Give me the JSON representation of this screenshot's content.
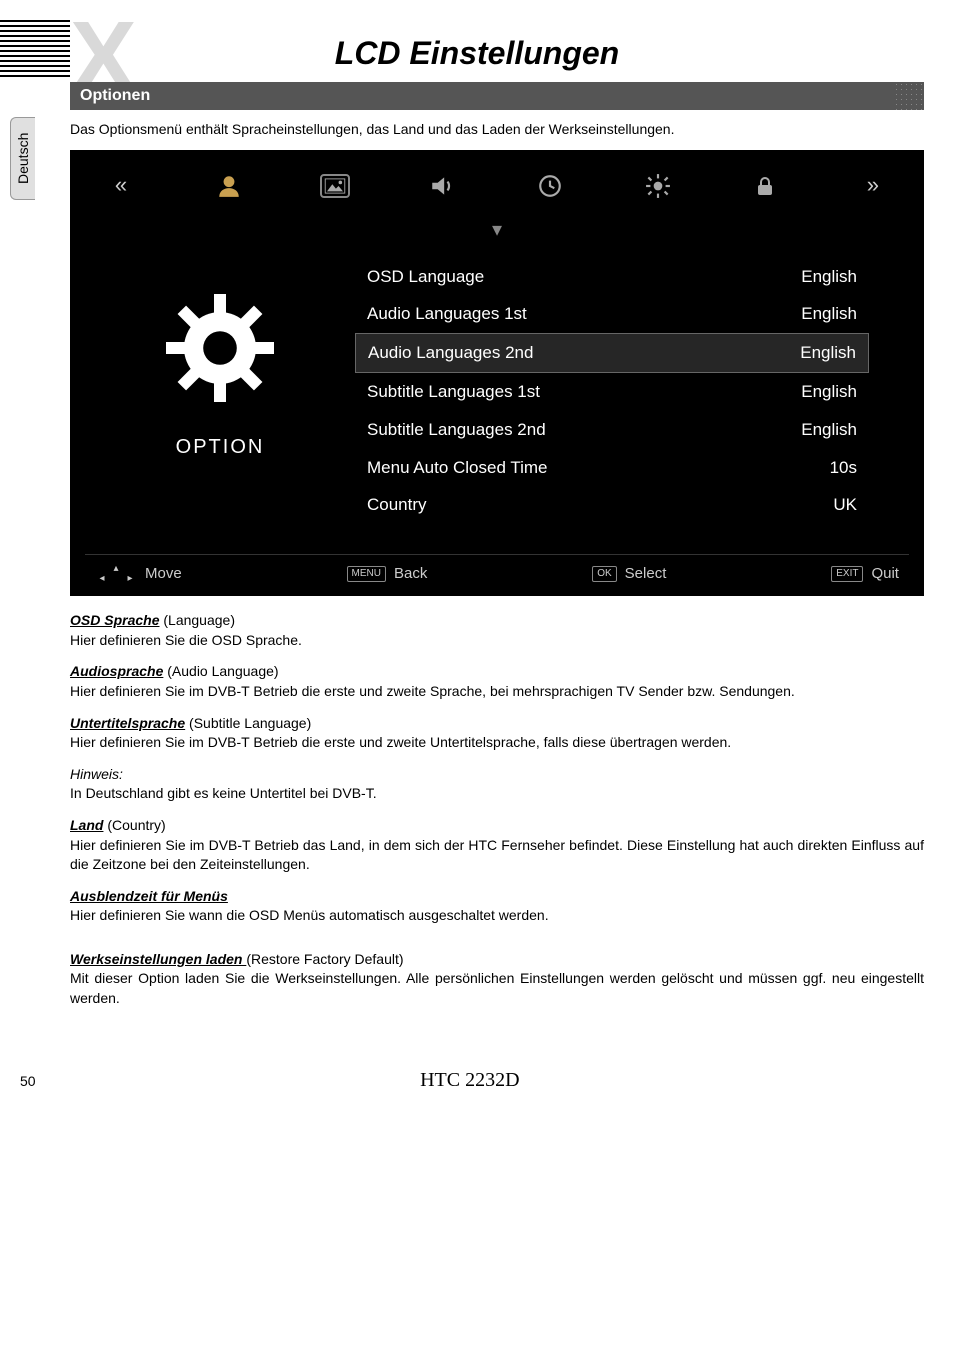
{
  "header": {
    "title": "LCD Einstellungen",
    "section": "Optionen",
    "lang_tab": "Deutsch"
  },
  "intro": "Das Optionsmenü enthält Spracheinstellungen, das Land und das Laden der Werkseinstellungen.",
  "osd": {
    "left_label": "OPTION",
    "rows": [
      {
        "label": "OSD Language",
        "value": "English",
        "selected": false
      },
      {
        "label": "Audio Languages 1st",
        "value": "English",
        "selected": false
      },
      {
        "label": "Audio Languages  2nd",
        "value": "English",
        "selected": true
      },
      {
        "label": "Subtitle Languages 1st",
        "value": "English",
        "selected": false
      },
      {
        "label": "Subtitle Languages  2nd",
        "value": "English",
        "selected": false
      },
      {
        "label": "Menu Auto Closed Time",
        "value": "10s",
        "selected": false
      },
      {
        "label": "Country",
        "value": "UK",
        "selected": false
      }
    ],
    "footer": {
      "move": "Move",
      "back_key": "MENU",
      "back": "Back",
      "select_key": "OK",
      "select": "Select",
      "quit_key": "EXIT",
      "quit": "Quit"
    },
    "icons": {
      "left_chevrons": "«",
      "right_chevrons": "»",
      "person": "person-icon",
      "image": "image-icon",
      "speaker": "speaker-icon",
      "clock": "clock-icon",
      "gear": "gear-icon",
      "lock": "lock-icon"
    }
  },
  "sections": [
    {
      "term": "OSD Sprache",
      "paren": " (Language)",
      "body": "Hier definieren Sie die OSD Sprache."
    },
    {
      "term": "Audiosprache",
      "paren": " (Audio Language)",
      "body": "Hier definieren Sie im DVB-T Betrieb die erste und zweite Sprache, bei mehrsprachigen TV Sender bzw. Sendungen."
    },
    {
      "term": "Untertitelsprache",
      "paren": " (Subtitle Language)",
      "body": "Hier definieren Sie im DVB-T Betrieb die erste und zweite Untertitelsprache, falls diese übertragen werden."
    },
    {
      "term": "Hinweis:",
      "paren": "",
      "body": "In Deutschland gibt es keine Untertitel bei DVB-T.",
      "italic_only": true
    },
    {
      "term": "Land",
      "paren": " (Country)",
      "body": "Hier definieren Sie im DVB-T Betrieb das Land, in dem sich der HTC Fernseher befindet. Diese Einstellung hat auch direkten Einfluss auf die Zeitzone bei den Zeiteinstellungen."
    },
    {
      "term": "Ausblendzeit für Menüs",
      "paren": "",
      "body": "Hier definieren Sie wann die OSD Menüs automatisch ausgeschaltet werden."
    },
    {
      "term": "Werkseinstellungen laden ",
      "paren": "(Restore Factory Default)",
      "body": "Mit dieser Option laden Sie die Werkseinstellungen. Alle persönlichen Einstellungen werden gelöscht und müssen ggf. neu eingestellt werden."
    }
  ],
  "footer": {
    "page": "50",
    "model": "HTC 2232D"
  },
  "colors": {
    "background": "#ffffff",
    "osd_bg": "#000000",
    "osd_text": "#ffffff",
    "section_bar_bg": "#555555",
    "big_x": "#d9d9d9"
  }
}
